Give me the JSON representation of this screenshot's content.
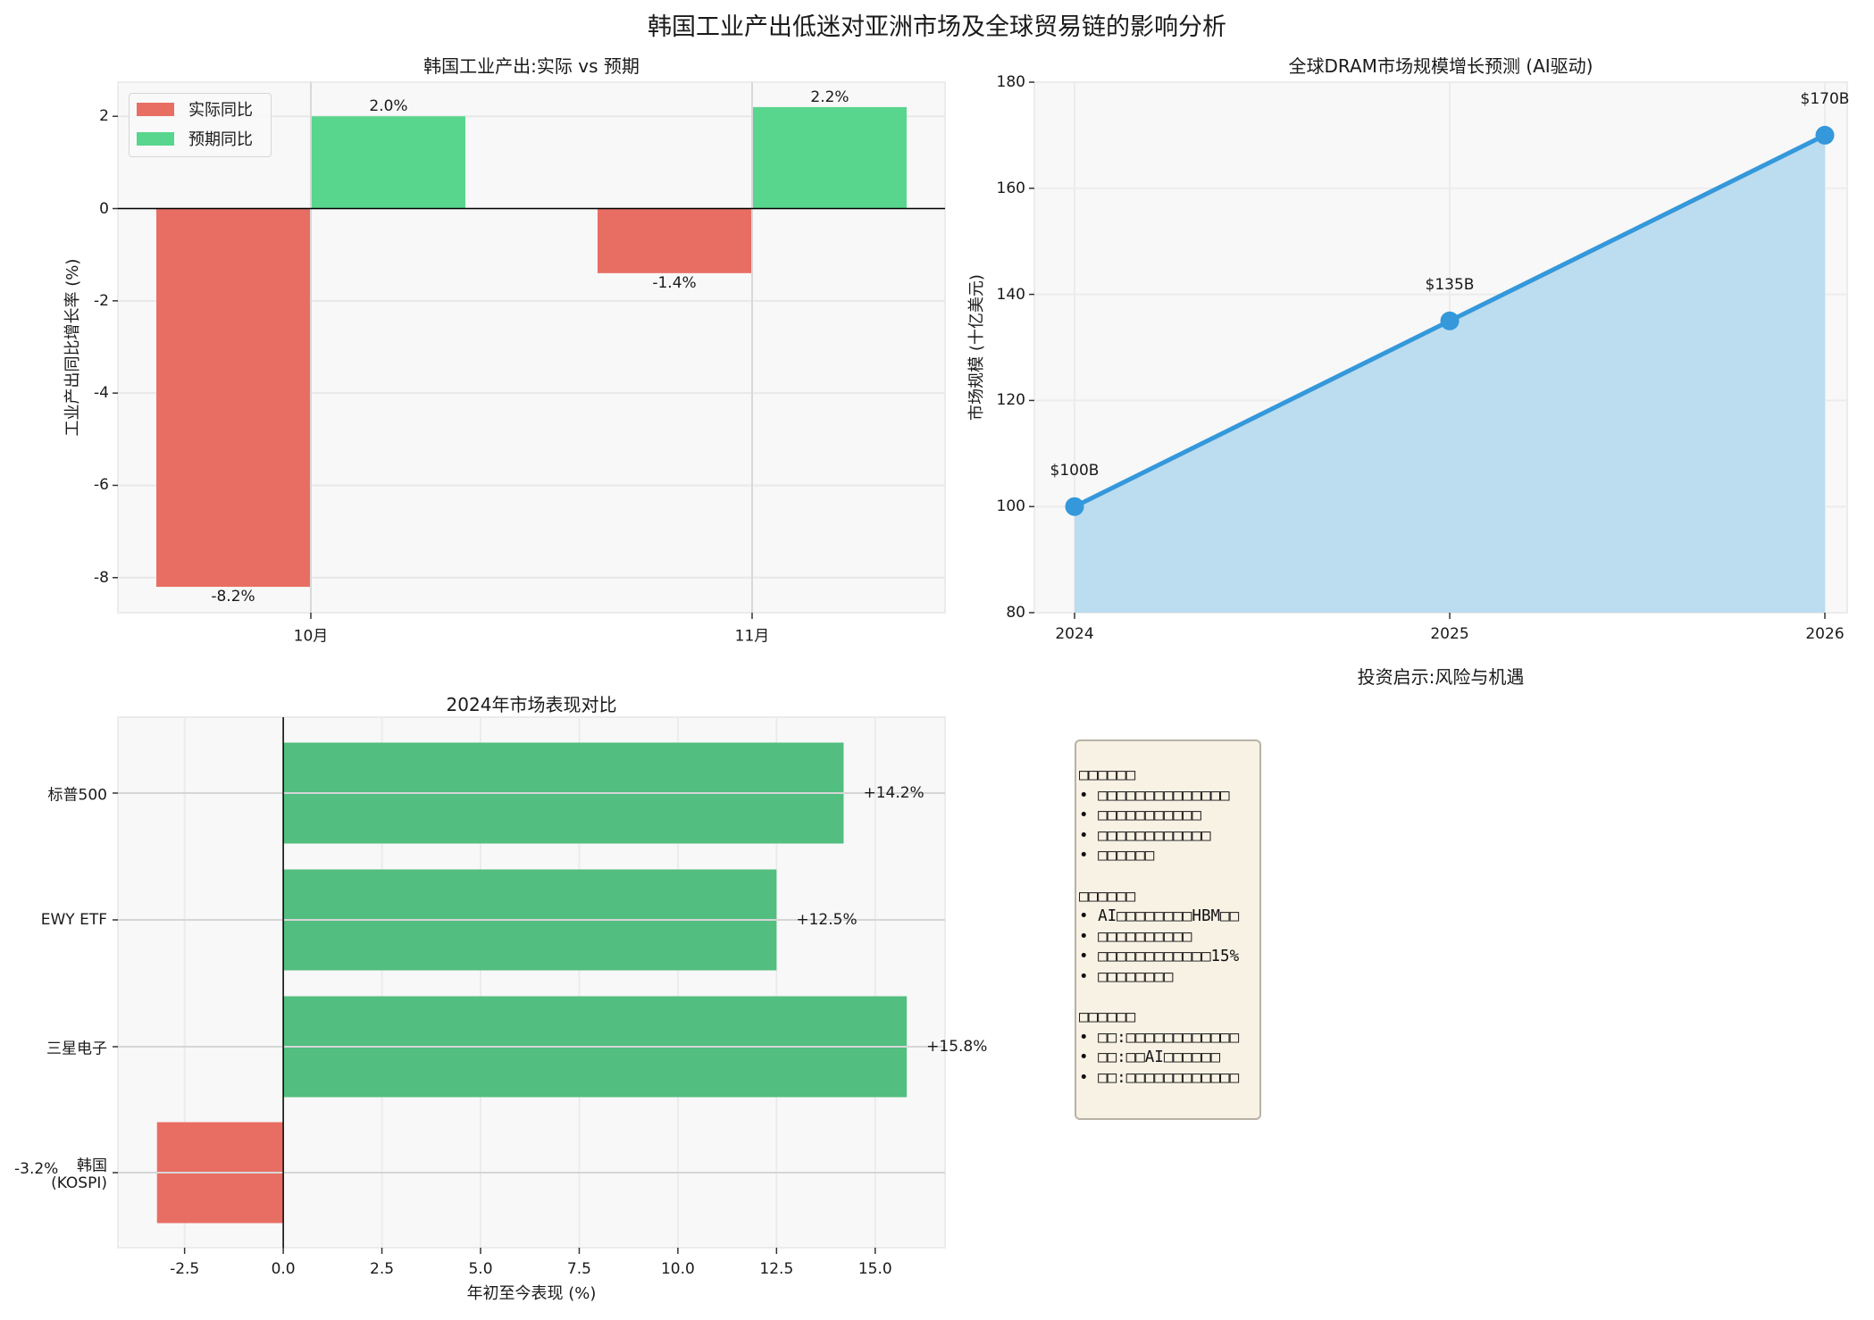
{
  "figure": {
    "title": "韩国工业产出低迷对亚洲市场及全球贸易链的影响分析"
  },
  "colors": {
    "actual_red": "#e86e63",
    "expected_green": "#58d68d",
    "market_green": "#52be80",
    "market_red": "#e86e63",
    "line_blue": "#3498db",
    "area_blue": "#bcdcef",
    "axes_bg": "#f8f8f8",
    "textbox_bg": "#f8f2e5"
  },
  "chart_data": [
    {
      "id": "industrial_output",
      "type": "bar",
      "title": "韩国工业产出:实际 vs 预期",
      "xlabel": "",
      "ylabel": "工业产出同比增长率 (%)",
      "categories": [
        "10月",
        "11月"
      ],
      "series": [
        {
          "name": "实际同比",
          "values": [
            -8.2,
            -1.4
          ],
          "labels": [
            "-8.2%",
            "-1.4%"
          ],
          "color": "#e86e63"
        },
        {
          "name": "预期同比",
          "values": [
            2.0,
            2.2
          ],
          "labels": [
            "2.0%",
            "2.2%"
          ],
          "color": "#58d68d"
        }
      ],
      "yticks": [
        "2",
        "0",
        "-2",
        "-4",
        "-6",
        "-8"
      ],
      "ylim": [
        -8.76,
        2.74
      ],
      "grid": true,
      "legend_position": "upper left"
    },
    {
      "id": "dram_market",
      "type": "area",
      "title": "全球DRAM市场规模增长预测 (AI驱动)",
      "xlabel": "",
      "ylabel": "市场规模 (十亿美元)",
      "x": [
        "2024",
        "2025",
        "2026"
      ],
      "values": [
        100,
        135,
        170
      ],
      "labels": [
        "$100B",
        "$135B",
        "$170B"
      ],
      "yticks": [
        "180",
        "160",
        "140",
        "120",
        "100",
        "80"
      ],
      "ylim": [
        80,
        180
      ],
      "grid": true
    },
    {
      "id": "market_performance",
      "type": "bar",
      "orientation": "horizontal",
      "title": "2024年市场表现对比",
      "xlabel": "年初至今表现 (%)",
      "ylabel": "",
      "categories": [
        "标普500",
        "EWY ETF",
        "三星电子",
        "韩国\n(KOSPI)"
      ],
      "category_lines": [
        [
          "标普500"
        ],
        [
          "EWY ETF"
        ],
        [
          "三星电子"
        ],
        [
          "韩国",
          "(KOSPI)"
        ]
      ],
      "values": [
        14.2,
        12.5,
        15.8,
        -3.2
      ],
      "labels": [
        "+14.2%",
        "+12.5%",
        "+15.8%",
        "-3.2%"
      ],
      "xticks": [
        "-2.5",
        "0.0",
        "2.5",
        "5.0",
        "7.5",
        "10.0",
        "12.5",
        "15.0"
      ],
      "xlim": [
        -4.19,
        16.77
      ],
      "grid": true
    }
  ],
  "insights_panel": {
    "title": "投资启示:风险与机遇",
    "lines": [
      "□□□□□□",
      "• □□□□□□□□□□□□□□",
      "• □□□□□□□□□□□",
      "• □□□□□□□□□□□□",
      "• □□□□□□",
      "",
      "□□□□□□",
      "• AI□□□□□□□□HBM□□",
      "• □□□□□□□□□□",
      "• □□□□□□□□□□□□15%",
      "• □□□□□□□□",
      "",
      "□□□□□□",
      "• □□:□□□□□□□□□□□□",
      "• □□:□□AI□□□□□□",
      "• □□:□□□□□□□□□□□□"
    ]
  }
}
